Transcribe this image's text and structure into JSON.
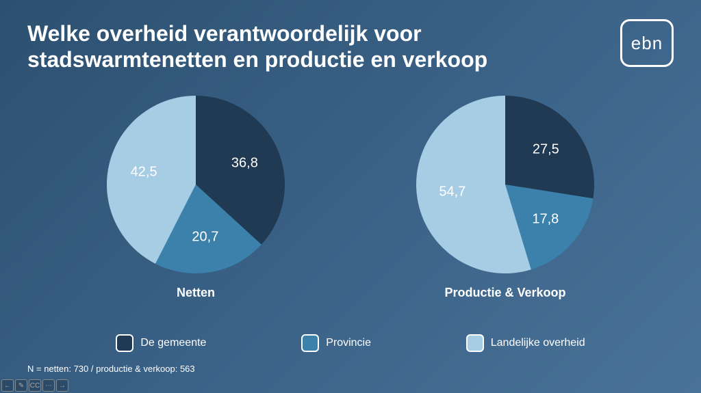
{
  "title": "Welke overheid verantwoordelijk voor stadswarmtenetten en productie en verkoop",
  "logo": "ebn",
  "colors": {
    "gemeente": "#1f3a52",
    "provincie": "#3b81ac",
    "landelijke": "#a6cde4"
  },
  "charts": {
    "left": {
      "type": "pie",
      "title": "Netten",
      "slices": [
        {
          "key": "gemeente",
          "value": 36.8,
          "label": "36,8"
        },
        {
          "key": "provincie",
          "value": 20.7,
          "label": "20,7"
        },
        {
          "key": "landelijke",
          "value": 42.5,
          "label": "42,5"
        }
      ],
      "label_fontsize": 20
    },
    "right": {
      "type": "pie",
      "title": "Productie & Verkoop",
      "slices": [
        {
          "key": "gemeente",
          "value": 27.5,
          "label": "27,5"
        },
        {
          "key": "provincie",
          "value": 17.8,
          "label": "17,8"
        },
        {
          "key": "landelijke",
          "value": 54.7,
          "label": "54,7"
        }
      ],
      "label_fontsize": 20
    }
  },
  "legend": [
    {
      "key": "gemeente",
      "label": "De gemeente"
    },
    {
      "key": "provincie",
      "label": "Provincie"
    },
    {
      "key": "landelijke",
      "label": "Landelijke overheid"
    }
  ],
  "footnote": "N = netten: 730 / productie & verkoop: 563",
  "controls": [
    "←",
    "✎",
    "CC",
    "⋯",
    "→"
  ]
}
